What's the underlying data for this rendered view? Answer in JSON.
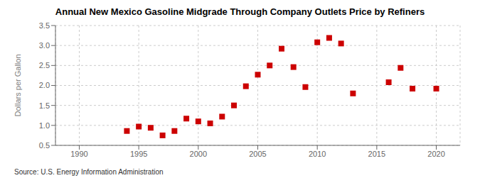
{
  "chart_data": {
    "type": "scatter",
    "title": "Annual New Mexico Gasoline Midgrade Through Company Outlets Price by Refiners",
    "ylabel": "Dollars per Gallon",
    "annotations": [
      "Source: U.S. Energy Information Administration"
    ],
    "x": [
      1994,
      1995,
      1996,
      1997,
      1998,
      1999,
      2000,
      2001,
      2002,
      2003,
      2004,
      2005,
      2006,
      2007,
      2008,
      2009,
      2010,
      2011,
      2012,
      2013,
      2016,
      2017,
      2018,
      2020
    ],
    "values": [
      0.86,
      0.97,
      0.94,
      0.75,
      0.86,
      1.17,
      1.1,
      1.05,
      1.22,
      1.5,
      1.98,
      2.27,
      2.5,
      2.92,
      2.46,
      1.96,
      3.08,
      3.19,
      3.05,
      1.8,
      2.08,
      2.44,
      1.92,
      1.92
    ],
    "color": "#cc0000",
    "marker": "square",
    "xlim": [
      1988,
      2022
    ],
    "ylim": [
      0.5,
      3.5
    ],
    "xticks": [
      1990,
      1995,
      2000,
      2005,
      2010,
      2015,
      2020
    ],
    "yticks": [
      0.5,
      {
        "value": 1.0,
        "label": "1.0"
      },
      1.5,
      {
        "value": 2.0,
        "label": "2.0"
      },
      2.5,
      {
        "value": 3.0,
        "label": "3.0"
      },
      3.5
    ],
    "grid": true
  }
}
